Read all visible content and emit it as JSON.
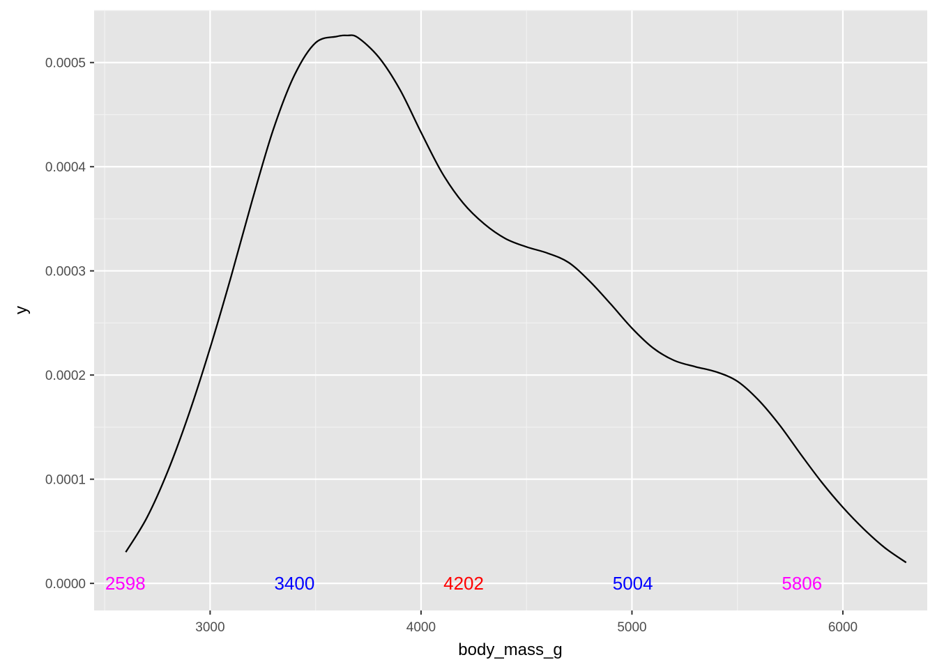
{
  "chart_data": {
    "type": "area",
    "xlabel": "body_mass_g",
    "ylabel": "y",
    "xlim": [
      2450,
      6400
    ],
    "ylim": [
      -2.6e-05,
      0.00055
    ],
    "grid": true,
    "x_ticks": [
      3000,
      4000,
      5000,
      6000
    ],
    "x_tick_labels": [
      "3000",
      "4000",
      "5000",
      "6000"
    ],
    "y_ticks": [
      0,
      0.0001,
      0.0002,
      0.0003,
      0.0004,
      0.0005
    ],
    "y_tick_labels": [
      "0.0000",
      "0.0001",
      "0.0002",
      "0.0003",
      "0.0004",
      "0.0005"
    ],
    "series": [
      {
        "color": "#000000",
        "x": [
          2600,
          2700,
          2800,
          2900,
          3000,
          3100,
          3200,
          3300,
          3400,
          3500,
          3600,
          3650,
          3700,
          3800,
          3900,
          4000,
          4100,
          4200,
          4300,
          4400,
          4500,
          4600,
          4700,
          4800,
          4900,
          5000,
          5100,
          5200,
          5300,
          5400,
          5500,
          5600,
          5700,
          5800,
          5900,
          6000,
          6100,
          6200,
          6300
        ],
        "y": [
          3e-05,
          6.3e-05,
          0.000108,
          0.000163,
          0.000226,
          0.000295,
          0.000368,
          0.000436,
          0.000488,
          0.000519,
          0.000525,
          0.000526,
          0.000524,
          0.000505,
          0.000474,
          0.000433,
          0.000394,
          0.000365,
          0.000345,
          0.000331,
          0.000323,
          0.000317,
          0.000308,
          0.00029,
          0.000268,
          0.000245,
          0.000226,
          0.000214,
          0.000208,
          0.000203,
          0.000194,
          0.000176,
          0.000152,
          0.000124,
          9.7e-05,
          7.3e-05,
          5.2e-05,
          3.4e-05,
          2e-05
        ]
      }
    ],
    "annotations": [
      {
        "label": "2598",
        "x": 2598,
        "y": 0,
        "color": "#ff00ff"
      },
      {
        "label": "3400",
        "x": 3400,
        "y": 0,
        "color": "#0000ff"
      },
      {
        "label": "4202",
        "x": 4202,
        "y": 0,
        "color": "#ff0000"
      },
      {
        "label": "5004",
        "x": 5004,
        "y": 0,
        "color": "#0000ff"
      },
      {
        "label": "5806",
        "x": 5806,
        "y": 0,
        "color": "#ff00ff"
      }
    ],
    "colors": {
      "panel_background": "#e5e5e5",
      "grid_major": "#ffffff",
      "grid_minor": "#f2f2f2"
    }
  }
}
